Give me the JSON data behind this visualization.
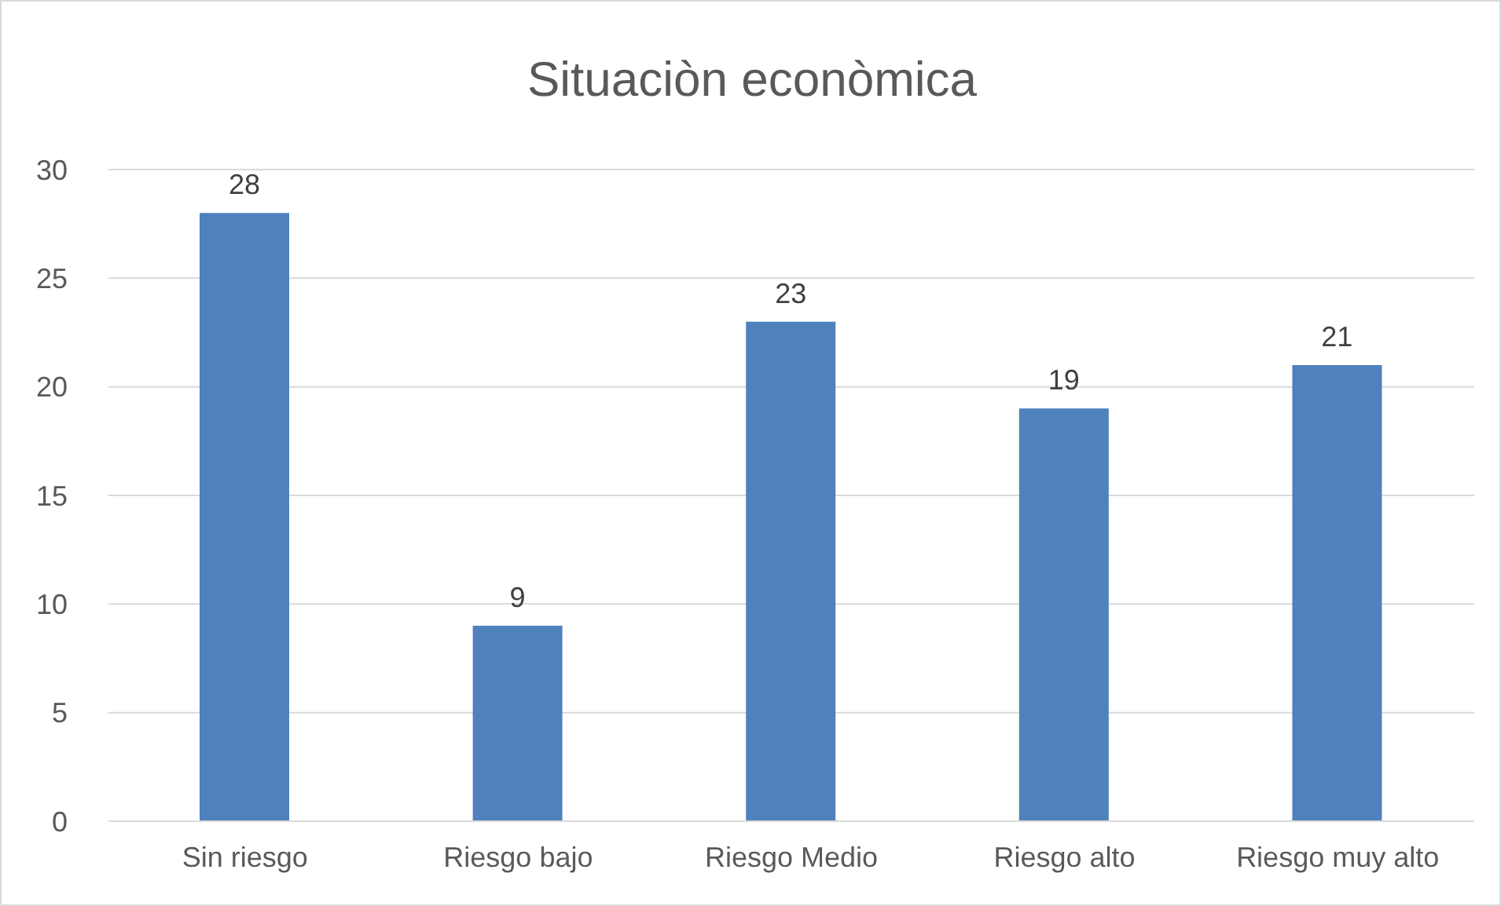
{
  "chart_data": {
    "type": "bar",
    "title": "Situaciòn econòmica",
    "categories": [
      "Sin riesgo",
      "Riesgo bajo",
      "Riesgo Medio",
      "Riesgo alto",
      "Riesgo muy alto"
    ],
    "values": [
      28,
      9,
      23,
      19,
      21
    ],
    "color": "#4f81bd",
    "ylim": [
      0,
      30
    ],
    "yticks": [
      0,
      5,
      10,
      15,
      20,
      25,
      30
    ],
    "grid": "y",
    "data_labels": true
  }
}
